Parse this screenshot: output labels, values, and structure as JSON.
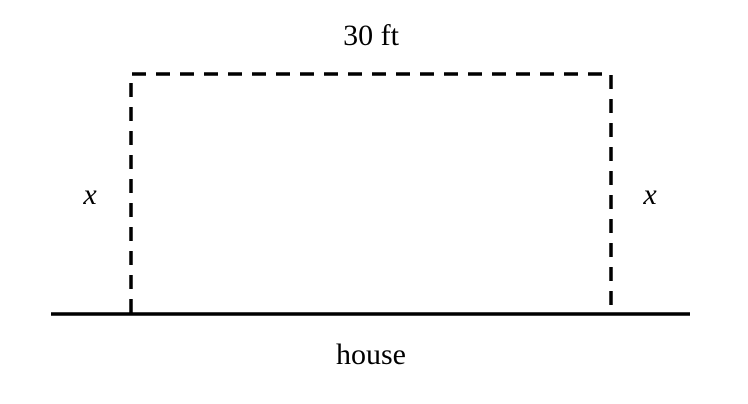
{
  "diagram": {
    "top_label": "30 ft",
    "left_label": "x",
    "right_label": "x",
    "bottom_label": "house",
    "colors": {
      "stroke": "#000000",
      "background": "#ffffff"
    }
  }
}
